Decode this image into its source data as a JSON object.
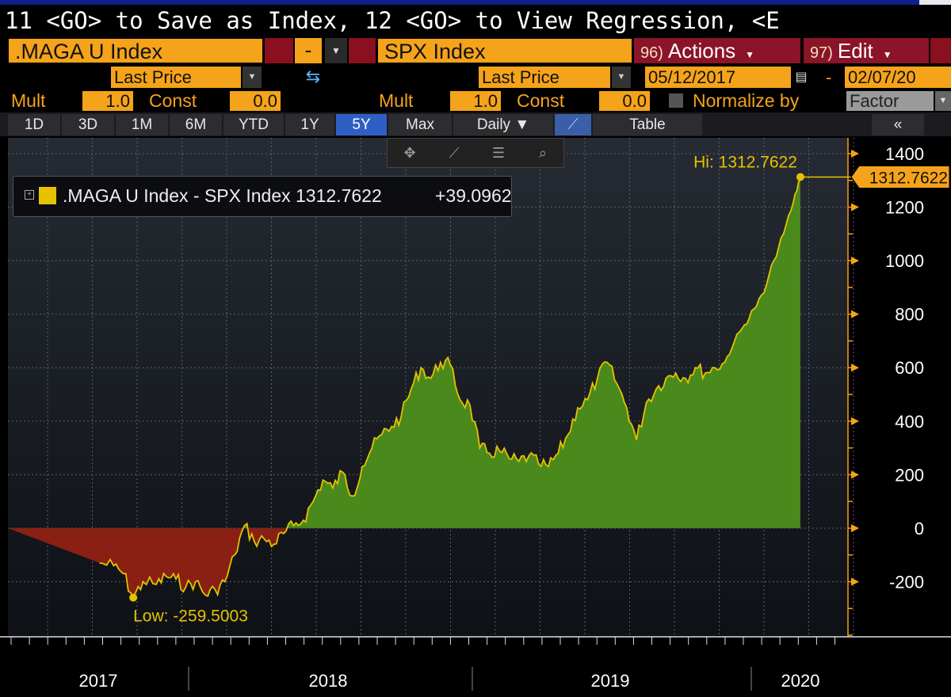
{
  "command_line": {
    "text": "11 <GO> to Save as Index, 12 <GO> to View Regression, <E"
  },
  "security_row": {
    "ticker1": ".MAGA U Index",
    "operator": "-",
    "ticker2": "SPX Index",
    "actions": {
      "num": "96)",
      "label": "Actions"
    },
    "edit": {
      "num": "97)",
      "label": "Edit"
    }
  },
  "field_row": {
    "field1": "Last Price",
    "field2": "Last Price",
    "start_date": "05/12/2017",
    "date_sep": "-",
    "end_date": "02/07/20"
  },
  "mult_row": {
    "mult_label": "Mult",
    "const_label": "Const",
    "mult1": "1.0",
    "const1": "0.0",
    "mult2": "1.0",
    "const2": "0.0",
    "normalize_label": "Normalize by",
    "normalize_value": "Factor"
  },
  "tabs": [
    {
      "label": "1D"
    },
    {
      "label": "3D"
    },
    {
      "label": "1M"
    },
    {
      "label": "6M"
    },
    {
      "label": "YTD"
    },
    {
      "label": "1Y"
    },
    {
      "label": "5Y"
    },
    {
      "label": "Max"
    },
    {
      "label": "Daily ▼"
    },
    {
      "label": "Table"
    },
    {
      "label": "«"
    }
  ],
  "legend": {
    "series": ".MAGA U Index - SPX Index 1312.7622",
    "change": "+39.0962"
  },
  "annotations": {
    "high": "Hi: 1312.7622",
    "low": "Low: -259.5003",
    "last_value": "1312.7622"
  },
  "colors": {
    "positive_fill": "#4a8a1c",
    "negative_fill": "#8a1f14",
    "line": "#e6c200",
    "accent": "#f5a31a"
  },
  "chart_data": {
    "type": "area",
    "y_ticks": [
      "1400",
      "1200",
      "1000",
      "800",
      "600",
      "400",
      "200",
      "0",
      "-200"
    ],
    "x_labels": [
      "2017",
      "2018",
      "2019",
      "2020"
    ],
    "ylim": [
      -400,
      1400
    ],
    "grid": true,
    "series": [
      {
        "x": [
          "2017-05-12",
          "2017-06-01",
          "2017-06-15",
          "2017-06-29",
          "2017-07-13",
          "2017-08-01",
          "2017-08-15",
          "2017-08-29",
          "2017-09-12",
          "2017-09-26",
          "2017-10-10",
          "2017-10-24",
          "2017-11-07",
          "2017-11-21",
          "2017-12-05",
          "2017-12-19",
          "2018-01-02",
          "2018-01-16",
          "2018-01-30",
          "2018-02-13",
          "2018-02-27",
          "2018-03-13",
          "2018-03-27",
          "2018-04-10",
          "2018-04-24",
          "2018-05-08",
          "2018-05-22",
          "2018-06-05",
          "2018-06-19",
          "2018-07-03",
          "2018-07-17",
          "2018-07-31",
          "2018-08-14",
          "2018-08-28",
          "2018-09-11",
          "2018-09-25",
          "2018-10-09",
          "2018-10-23",
          "2018-11-06",
          "2018-11-20",
          "2018-12-04",
          "2018-12-18",
          "2019-01-01",
          "2019-01-15",
          "2019-01-29",
          "2019-02-12",
          "2019-02-26",
          "2019-03-12",
          "2019-03-26",
          "2019-04-09",
          "2019-04-23",
          "2019-05-07",
          "2019-05-21",
          "2019-06-04",
          "2019-06-18",
          "2019-07-02",
          "2019-07-16",
          "2019-07-30",
          "2019-08-13",
          "2019-08-27",
          "2019-09-10",
          "2019-09-24",
          "2019-10-08",
          "2019-10-22",
          "2019-11-05",
          "2019-11-19",
          "2019-12-03",
          "2019-12-17",
          "2019-12-31",
          "2020-01-14",
          "2020-01-28",
          "2020-02-07"
        ],
        "values": [
          -130,
          -140,
          -170,
          -259.5,
          -200,
          -210,
          -180,
          -190,
          -220,
          -200,
          -250,
          -230,
          -200,
          -100,
          10,
          -50,
          -40,
          -60,
          -20,
          10,
          30,
          100,
          180,
          150,
          210,
          120,
          230,
          300,
          350,
          380,
          420,
          520,
          600,
          560,
          620,
          610,
          480,
          460,
          300,
          280,
          290,
          260,
          250,
          270,
          240,
          230,
          280,
          350,
          450,
          480,
          560,
          620,
          540,
          450,
          330,
          470,
          520,
          560,
          580,
          560,
          600,
          580,
          600,
          620,
          700,
          760,
          820,
          880,
          1000,
          1100,
          1220,
          1312.7622
        ]
      }
    ]
  }
}
